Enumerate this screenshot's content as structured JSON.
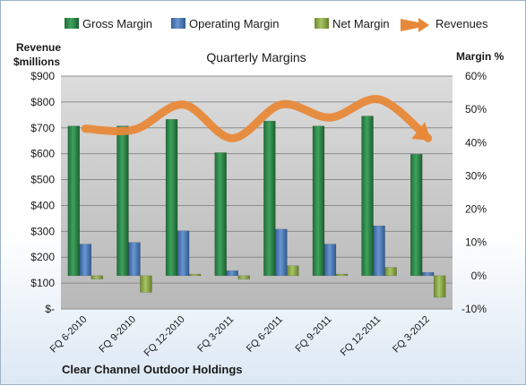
{
  "chart_data": {
    "type": "bar",
    "title": "Quarterly Margins",
    "company": "Clear Channel Outdoor Holdings",
    "left_axis_title": [
      "Revenue",
      "$millions"
    ],
    "right_axis_title": "Margin %",
    "categories": [
      "FQ 6-2010",
      "FQ 9-2010",
      "FQ 12-2010",
      "FQ 3-2011",
      "FQ 6-2011",
      "FQ 9-2011",
      "FQ 12-2011",
      "FQ 3-2012"
    ],
    "left_ticks": [
      "$-",
      "$100",
      "$200",
      "$300",
      "$400",
      "$500",
      "$600",
      "$700",
      "$800",
      "$900"
    ],
    "right_ticks": [
      "-10%",
      "0%",
      "10%",
      "20%",
      "30%",
      "40%",
      "50%",
      "60%"
    ],
    "ylim_left": [
      0,
      900
    ],
    "ylim_right": [
      -10,
      60
    ],
    "legend": [
      {
        "name": "Gross Margin",
        "kind": "bar",
        "color": "#2e8b4a"
      },
      {
        "name": "Operating Margin",
        "kind": "bar",
        "color": "#4f7fbf"
      },
      {
        "name": "Net Margin",
        "kind": "bar",
        "color": "#9bbb59"
      },
      {
        "name": "Revenues",
        "kind": "arrow",
        "color": "#e8893a"
      }
    ],
    "series": [
      {
        "name": "Gross Margin",
        "axis": "right",
        "values": [
          45,
          45,
          47,
          37,
          46.5,
          45,
          48,
          36.5
        ]
      },
      {
        "name": "Operating Margin",
        "axis": "right",
        "values": [
          9.5,
          10,
          13.5,
          1.5,
          14,
          9.5,
          15,
          1
        ]
      },
      {
        "name": "Net Margin",
        "axis": "right",
        "values": [
          -1,
          -5,
          0.5,
          -1,
          3,
          0.5,
          2.5,
          -6.5
        ]
      },
      {
        "name": "Revenues",
        "axis": "left",
        "values": [
          697,
          693,
          790,
          660,
          790,
          740,
          810,
          660
        ]
      }
    ],
    "grid": true
  }
}
